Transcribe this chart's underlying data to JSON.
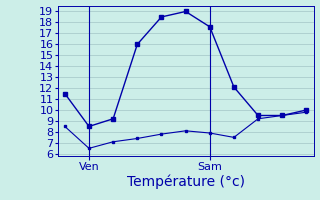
{
  "upper_x": [
    0,
    1,
    2,
    3,
    4,
    5,
    6,
    7,
    8,
    9,
    10
  ],
  "upper_y": [
    11.5,
    8.5,
    9.2,
    16.0,
    18.5,
    19.0,
    17.6,
    12.1,
    9.5,
    9.5,
    10.0
  ],
  "lower_x": [
    0,
    1,
    2,
    3,
    4,
    5,
    6,
    7,
    8,
    9,
    10
  ],
  "lower_y": [
    8.5,
    6.5,
    7.1,
    7.4,
    7.8,
    8.1,
    7.9,
    7.5,
    9.2,
    9.5,
    9.8
  ],
  "xlim": [
    -0.3,
    10.3
  ],
  "ylim": [
    5.8,
    19.5
  ],
  "yticks": [
    6,
    7,
    8,
    9,
    10,
    11,
    12,
    13,
    14,
    15,
    16,
    17,
    18,
    19
  ],
  "ven_x": 1,
  "sam_x": 6,
  "xtick_positions": [
    1,
    6
  ],
  "xtick_labels": [
    "Ven",
    "Sam"
  ],
  "xlabel": "Température (°c)",
  "line_color": "#0000aa",
  "bg_color": "#cceee8",
  "grid_color": "#aacccc",
  "xlabel_fontsize": 10,
  "tick_fontsize": 8,
  "figsize": [
    3.2,
    2.0
  ],
  "dpi": 100
}
